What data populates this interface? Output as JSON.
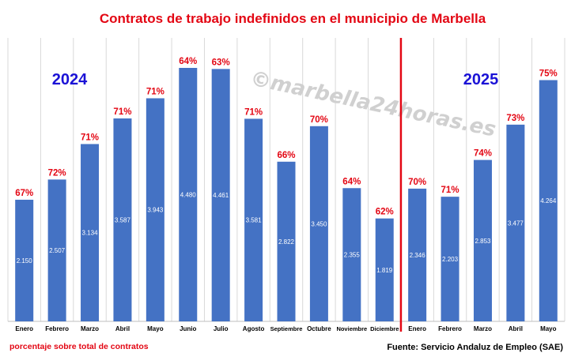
{
  "chart_data": {
    "type": "bar",
    "title": "Contratos de trabajo indefinidos en el municipio de Marbella",
    "watermark": "©marbella24horas.es",
    "year_labels": [
      "2024",
      "2025"
    ],
    "categories": [
      "Enero",
      "Febrero",
      "Marzo",
      "Abril",
      "Mayo",
      "Junio",
      "Julio",
      "Agosto",
      "Septiembre",
      "Octubre",
      "Noviembre",
      "Diciembre",
      "Enero",
      "Febrero",
      "Marzo",
      "Abril",
      "Mayo"
    ],
    "values": [
      2150,
      2507,
      3134,
      3587,
      3943,
      4480,
      4461,
      3581,
      2822,
      3450,
      2355,
      1819,
      2346,
      2203,
      2853,
      3477,
      4264
    ],
    "value_labels": [
      "2.150",
      "2.507",
      "3.134",
      "3.587",
      "3.943",
      "4.480",
      "4.461",
      "3.581",
      "2.822",
      "3.450",
      "2.355",
      "1.819",
      "2.346",
      "2.203",
      "2.853",
      "3.477",
      "4.264"
    ],
    "percent_labels": [
      "67%",
      "72%",
      "71%",
      "71%",
      "71%",
      "64%",
      "63%",
      "71%",
      "66%",
      "70%",
      "64%",
      "62%",
      "70%",
      "71%",
      "74%",
      "73%",
      "75%"
    ],
    "ylim": [
      0,
      4800
    ],
    "grid": "vertical",
    "divider_after_index": 11,
    "note": "porcentaje sobre total de contratos",
    "source": "Fuente: Servicio Andaluz de Empleo (SAE)",
    "colors": {
      "bar": "#4472c4",
      "title": "#e30613",
      "percent": "#e30613",
      "year": "#1b12d6",
      "divider": "#e30613",
      "note": "#e30613",
      "source": "#000000",
      "watermark": "#d0d0d0"
    }
  }
}
